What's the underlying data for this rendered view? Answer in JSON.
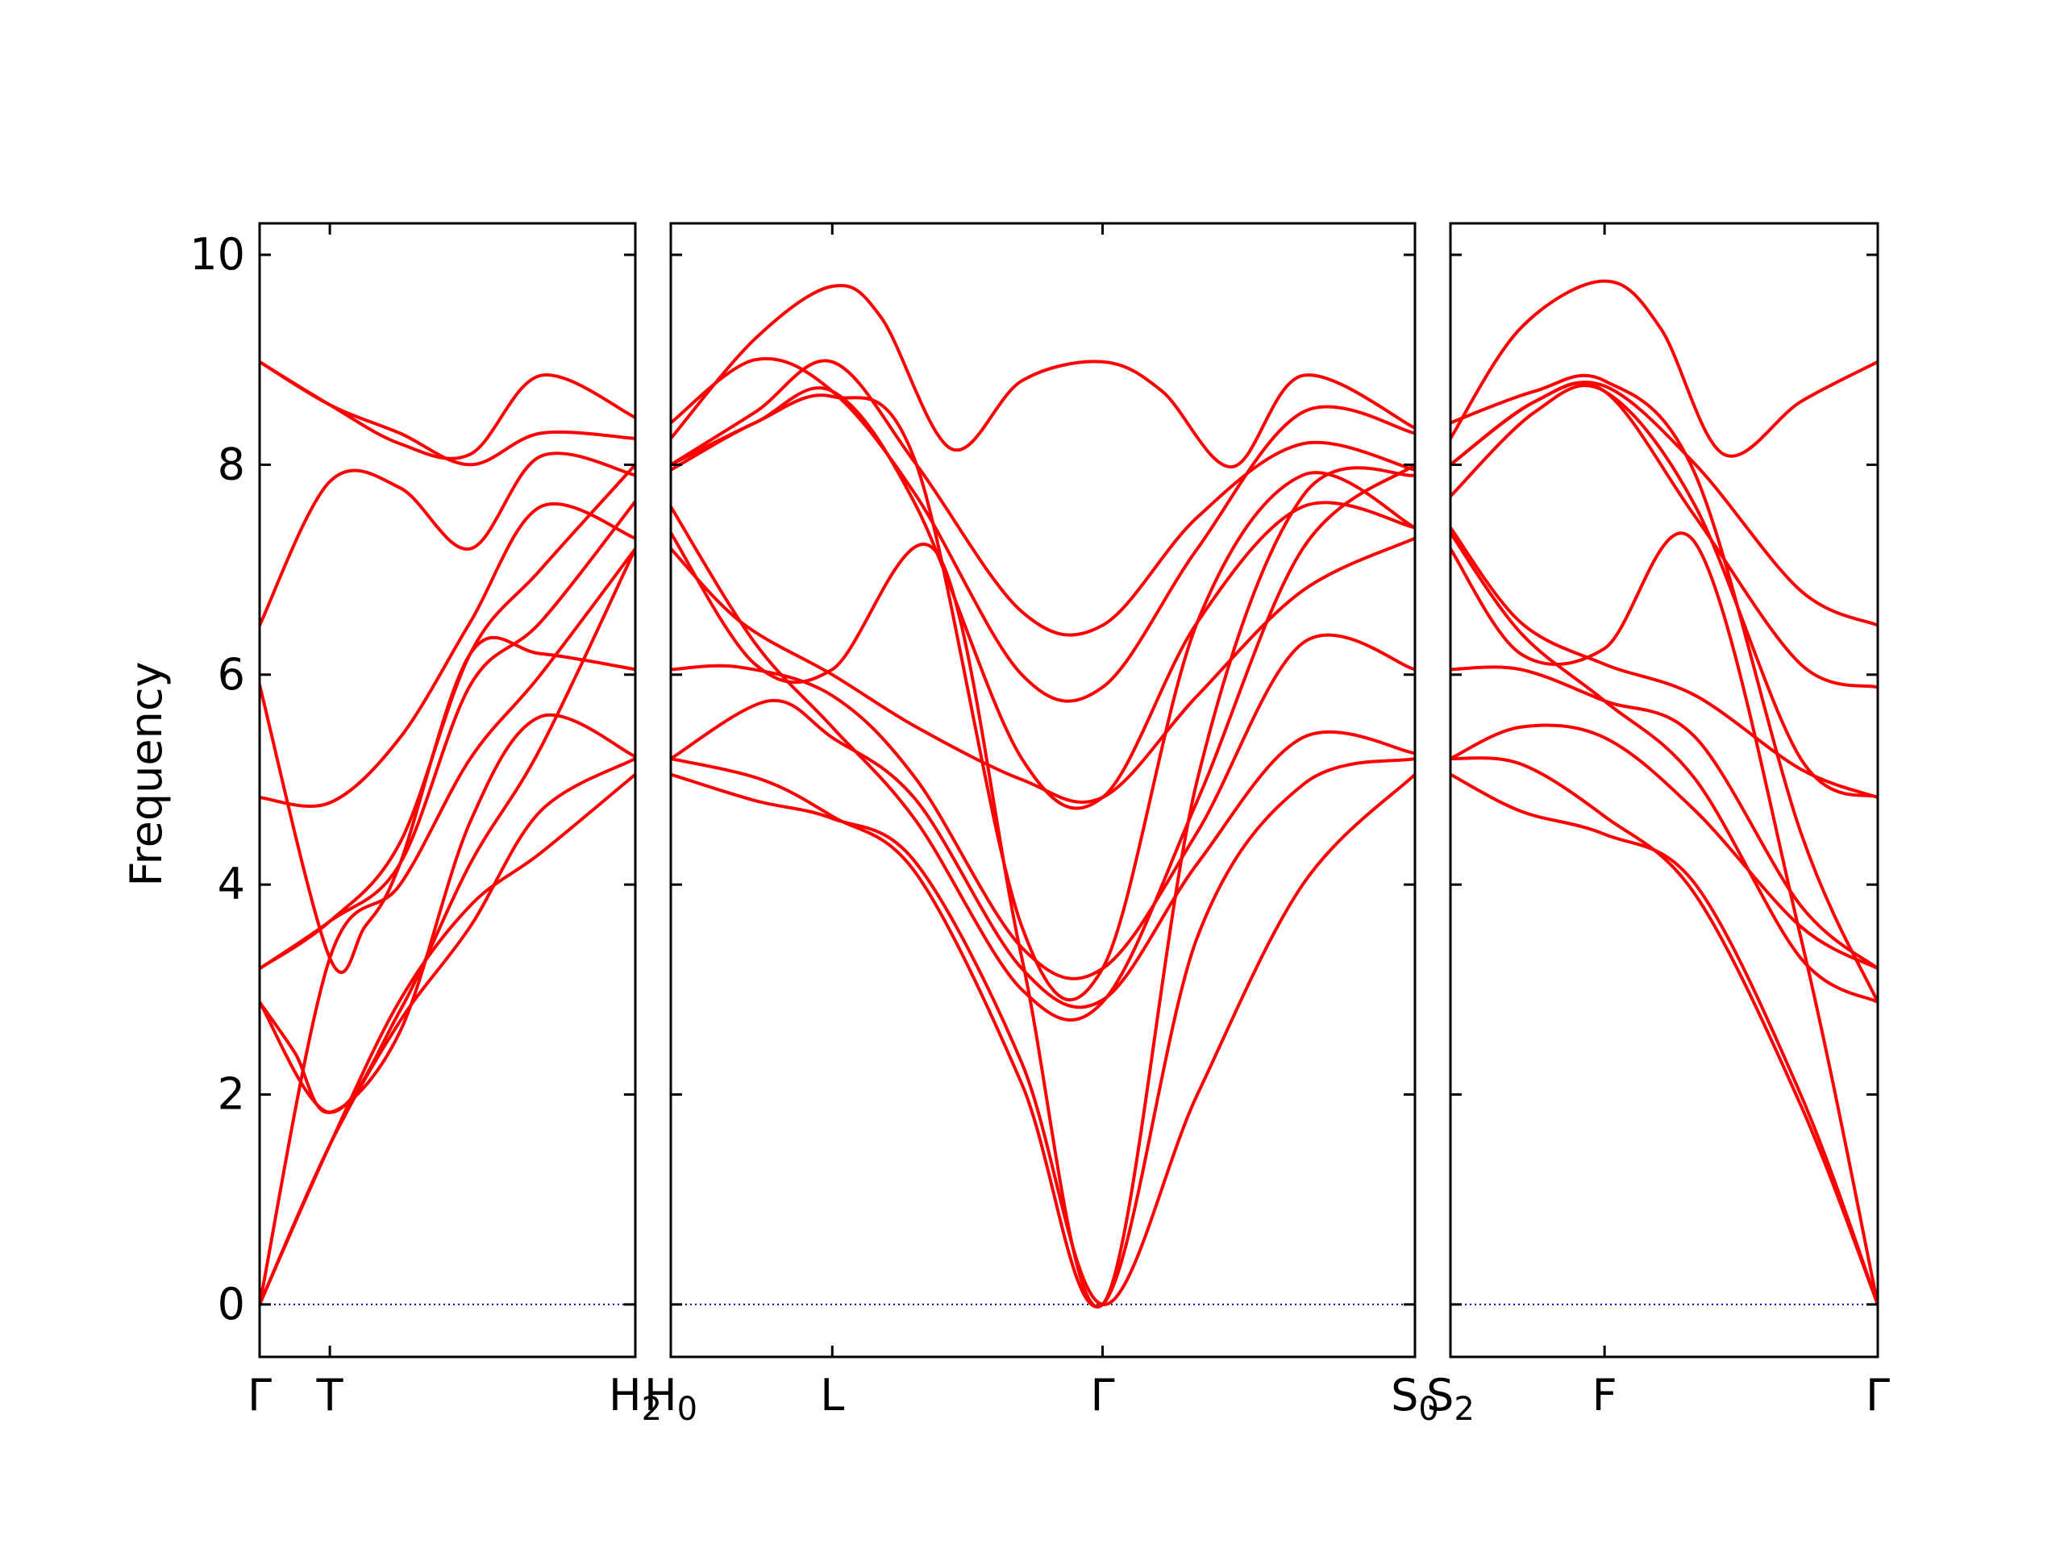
{
  "chart_data": {
    "type": "line",
    "ylabel": "Frequency",
    "ylim": [
      -0.5,
      10.3
    ],
    "grid": false,
    "legend": "none",
    "yticks": [
      0,
      2,
      4,
      6,
      8,
      10
    ],
    "line_color": "#ff0000",
    "zero_line_color": "#0000cc",
    "panels": [
      {
        "xlim": [
          0,
          5.35
        ],
        "ticks": [
          {
            "x": 0,
            "label": "Γ",
            "sub": ""
          },
          {
            "x": 1.0,
            "label": "T",
            "sub": ""
          },
          {
            "x": 5.35,
            "label": "H",
            "sub": "2"
          }
        ],
        "bands": [
          [
            [
              0,
              0
            ],
            [
              1.0,
              1.52
            ],
            [
              2.0,
              2.9
            ],
            [
              3.0,
              3.8
            ],
            [
              4.0,
              4.3
            ],
            [
              5.35,
              5.05
            ]
          ],
          [
            [
              0,
              0
            ],
            [
              1.0,
              3.3
            ],
            [
              2.0,
              4.0
            ],
            [
              3.0,
              5.2
            ],
            [
              4.0,
              6.0
            ],
            [
              5.35,
              7.2
            ]
          ],
          [
            [
              0,
              2.88
            ],
            [
              0.5,
              2.4
            ],
            [
              1.0,
              1.83
            ],
            [
              2.0,
              2.6
            ],
            [
              3.0,
              4.6
            ],
            [
              4.0,
              5.6
            ],
            [
              5.35,
              5.22
            ]
          ],
          [
            [
              0,
              3.2
            ],
            [
              1.0,
              3.65
            ],
            [
              2.0,
              4.2
            ],
            [
              3.0,
              5.9
            ],
            [
              4.0,
              6.5
            ],
            [
              5.35,
              7.65
            ]
          ],
          [
            [
              0,
              4.83
            ],
            [
              1.0,
              4.78
            ],
            [
              2.0,
              5.4
            ],
            [
              3.0,
              6.5
            ],
            [
              4.0,
              7.6
            ],
            [
              5.35,
              7.3
            ]
          ],
          [
            [
              0,
              5.9
            ],
            [
              1.0,
              3.3
            ],
            [
              1.5,
              3.6
            ],
            [
              2.0,
              4.2
            ],
            [
              3.0,
              6.2
            ],
            [
              4.0,
              6.2
            ],
            [
              5.35,
              6.05
            ]
          ],
          [
            [
              0,
              6.47
            ],
            [
              1.0,
              7.84
            ],
            [
              2.0,
              7.78
            ],
            [
              3.0,
              7.2
            ],
            [
              4.0,
              8.08
            ],
            [
              5.35,
              7.9
            ]
          ],
          [
            [
              0,
              8.98
            ],
            [
              1.0,
              8.57
            ],
            [
              2.0,
              8.3
            ],
            [
              3.0,
              8.0
            ],
            [
              4.0,
              8.3
            ],
            [
              5.35,
              8.25
            ]
          ],
          [
            [
              0,
              8.98
            ],
            [
              1.0,
              8.57
            ],
            [
              2.0,
              8.2
            ],
            [
              3.0,
              8.1
            ],
            [
              4.0,
              8.85
            ],
            [
              5.35,
              8.45
            ]
          ],
          [
            [
              0,
              0
            ],
            [
              1.0,
              1.52
            ],
            [
              2.0,
              2.7
            ],
            [
              3.0,
              3.6
            ],
            [
              4.0,
              4.7
            ],
            [
              5.35,
              5.2
            ]
          ],
          [
            [
              0,
              2.88
            ],
            [
              1.0,
              1.83
            ],
            [
              2.0,
              2.8
            ],
            [
              3.0,
              4.2
            ],
            [
              4.0,
              5.3
            ],
            [
              5.35,
              7.2
            ]
          ],
          [
            [
              0,
              3.2
            ],
            [
              1.0,
              3.65
            ],
            [
              2.0,
              4.4
            ],
            [
              3.0,
              6.2
            ],
            [
              4.0,
              7.0
            ],
            [
              5.35,
              8.0
            ]
          ]
        ]
      },
      {
        "xlim": [
          0,
          10.6
        ],
        "ticks": [
          {
            "x": 0,
            "label": "H",
            "sub": "0"
          },
          {
            "x": 2.3,
            "label": "L",
            "sub": ""
          },
          {
            "x": 6.15,
            "label": "Γ",
            "sub": ""
          },
          {
            "x": 10.6,
            "label": "S",
            "sub": "0"
          }
        ],
        "bands": [
          [
            [
              0,
              5.05
            ],
            [
              1.2,
              4.8
            ],
            [
              2.3,
              4.63
            ],
            [
              3.5,
              4.2
            ],
            [
              5.0,
              2.3
            ],
            [
              6.15,
              0
            ],
            [
              7.5,
              2.0
            ],
            [
              9.0,
              4.0
            ],
            [
              10.6,
              5.05
            ]
          ],
          [
            [
              0,
              5.2
            ],
            [
              1.3,
              5.0
            ],
            [
              2.3,
              4.65
            ],
            [
              3.5,
              4.1
            ],
            [
              5.0,
              2.1
            ],
            [
              6.15,
              0
            ],
            [
              7.5,
              3.5
            ],
            [
              9.0,
              4.95
            ],
            [
              10.6,
              5.2
            ]
          ],
          [
            [
              0,
              5.2
            ],
            [
              1.4,
              5.75
            ],
            [
              2.3,
              5.4
            ],
            [
              3.5,
              4.8
            ],
            [
              5.0,
              3.2
            ],
            [
              6.15,
              2.9
            ],
            [
              7.5,
              4.2
            ],
            [
              9.0,
              5.4
            ],
            [
              10.6,
              5.25
            ]
          ],
          [
            [
              0,
              6.05
            ],
            [
              1.0,
              6.07
            ],
            [
              2.3,
              5.8
            ],
            [
              3.5,
              5.0
            ],
            [
              5.0,
              3.4
            ],
            [
              6.15,
              3.2
            ],
            [
              7.5,
              4.5
            ],
            [
              9.0,
              6.3
            ],
            [
              10.6,
              6.05
            ]
          ],
          [
            [
              0,
              7.2
            ],
            [
              1.0,
              6.5
            ],
            [
              2.3,
              6.0
            ],
            [
              3.5,
              5.5
            ],
            [
              5.0,
              5.0
            ],
            [
              6.15,
              4.83
            ],
            [
              7.5,
              5.8
            ],
            [
              9.0,
              6.8
            ],
            [
              10.6,
              7.3
            ]
          ],
          [
            [
              0,
              7.35
            ],
            [
              1.2,
              6.1
            ],
            [
              2.3,
              6.05
            ],
            [
              3.8,
              7.15
            ],
            [
              5.0,
              3.3
            ],
            [
              6.15,
              0
            ],
            [
              7.5,
              5.0
            ],
            [
              9.0,
              7.7
            ],
            [
              10.6,
              7.9
            ]
          ],
          [
            [
              0,
              7.6
            ],
            [
              1.2,
              6.3
            ],
            [
              2.3,
              5.5
            ],
            [
              3.5,
              4.6
            ],
            [
              5.0,
              3.0
            ],
            [
              6.15,
              2.88
            ],
            [
              7.5,
              4.8
            ],
            [
              9.0,
              7.2
            ],
            [
              10.6,
              8.0
            ]
          ],
          [
            [
              0,
              7.95
            ],
            [
              1.2,
              8.4
            ],
            [
              2.3,
              8.65
            ],
            [
              3.5,
              8.0
            ],
            [
              5.0,
              3.6
            ],
            [
              6.15,
              3.2
            ],
            [
              7.5,
              6.5
            ],
            [
              9.0,
              7.9
            ],
            [
              10.6,
              7.4
            ]
          ],
          [
            [
              0,
              8.0
            ],
            [
              1.2,
              8.4
            ],
            [
              2.3,
              8.7
            ],
            [
              3.5,
              7.6
            ],
            [
              5.0,
              5.2
            ],
            [
              6.15,
              4.83
            ],
            [
              7.5,
              6.5
            ],
            [
              9.0,
              7.6
            ],
            [
              10.6,
              7.4
            ]
          ],
          [
            [
              0,
              8.0
            ],
            [
              1.2,
              8.5
            ],
            [
              2.3,
              8.98
            ],
            [
              3.5,
              8.0
            ],
            [
              5.0,
              6.6
            ],
            [
              6.15,
              6.47
            ],
            [
              7.5,
              7.5
            ],
            [
              9.0,
              8.2
            ],
            [
              10.6,
              7.95
            ]
          ],
          [
            [
              0,
              8.25
            ],
            [
              1.2,
              9.2
            ],
            [
              2.3,
              9.7
            ],
            [
              3.0,
              9.4
            ],
            [
              4.0,
              8.15
            ],
            [
              5.0,
              8.8
            ],
            [
              6.15,
              8.98
            ],
            [
              7.0,
              8.7
            ],
            [
              8.0,
              7.98
            ],
            [
              9.0,
              8.85
            ],
            [
              10.6,
              8.35
            ]
          ],
          [
            [
              0,
              8.4
            ],
            [
              1.2,
              9.0
            ],
            [
              2.3,
              8.7
            ],
            [
              3.5,
              7.7
            ],
            [
              5.0,
              6.0
            ],
            [
              6.15,
              5.88
            ],
            [
              7.5,
              7.2
            ],
            [
              9.0,
              8.5
            ],
            [
              10.6,
              8.3
            ]
          ]
        ]
      },
      {
        "xlim": [
          0,
          6.1
        ],
        "ticks": [
          {
            "x": 0,
            "label": "S",
            "sub": "2"
          },
          {
            "x": 2.2,
            "label": "F",
            "sub": ""
          },
          {
            "x": 6.1,
            "label": "Γ",
            "sub": ""
          }
        ],
        "bands": [
          [
            [
              0,
              5.05
            ],
            [
              1.0,
              4.7
            ],
            [
              2.2,
              4.48
            ],
            [
              3.5,
              4.0
            ],
            [
              5.0,
              2.0
            ],
            [
              6.1,
              0
            ]
          ],
          [
            [
              0,
              5.2
            ],
            [
              1.0,
              5.15
            ],
            [
              2.2,
              4.65
            ],
            [
              3.5,
              3.9
            ],
            [
              5.0,
              1.9
            ],
            [
              6.1,
              0
            ]
          ],
          [
            [
              0,
              5.2
            ],
            [
              1.0,
              5.5
            ],
            [
              2.2,
              5.4
            ],
            [
              3.5,
              4.7
            ],
            [
              5.0,
              3.6
            ],
            [
              6.1,
              3.2
            ]
          ],
          [
            [
              0,
              6.05
            ],
            [
              1.0,
              6.05
            ],
            [
              2.2,
              5.75
            ],
            [
              3.5,
              5.4
            ],
            [
              5.0,
              3.8
            ],
            [
              6.1,
              3.2
            ]
          ],
          [
            [
              0,
              7.2
            ],
            [
              1.0,
              6.2
            ],
            [
              2.2,
              6.25
            ],
            [
              3.5,
              7.25
            ],
            [
              5.0,
              3.5
            ],
            [
              6.1,
              0
            ]
          ],
          [
            [
              0,
              7.35
            ],
            [
              1.0,
              6.4
            ],
            [
              2.2,
              5.75
            ],
            [
              3.5,
              5.0
            ],
            [
              5.0,
              3.3
            ],
            [
              6.1,
              2.88
            ]
          ],
          [
            [
              0,
              7.4
            ],
            [
              1.0,
              6.5
            ],
            [
              2.2,
              6.1
            ],
            [
              3.5,
              5.8
            ],
            [
              5.0,
              5.1
            ],
            [
              6.1,
              4.83
            ]
          ],
          [
            [
              0,
              7.7
            ],
            [
              1.2,
              8.5
            ],
            [
              2.2,
              8.7
            ],
            [
              3.5,
              7.6
            ],
            [
              5.0,
              5.2
            ],
            [
              6.1,
              4.83
            ]
          ],
          [
            [
              0,
              8.0
            ],
            [
              1.2,
              8.6
            ],
            [
              2.2,
              8.75
            ],
            [
              3.5,
              8.0
            ],
            [
              5.0,
              6.8
            ],
            [
              6.1,
              6.47
            ]
          ],
          [
            [
              0,
              8.0
            ],
            [
              1.2,
              8.6
            ],
            [
              2.2,
              8.7
            ],
            [
              3.5,
              7.5
            ],
            [
              5.0,
              6.1
            ],
            [
              6.1,
              5.88
            ]
          ],
          [
            [
              0,
              8.25
            ],
            [
              1.0,
              9.3
            ],
            [
              2.2,
              9.75
            ],
            [
              3.0,
              9.3
            ],
            [
              3.9,
              8.1
            ],
            [
              5.0,
              8.6
            ],
            [
              6.1,
              8.98
            ]
          ],
          [
            [
              0,
              8.4
            ],
            [
              1.2,
              8.7
            ],
            [
              2.2,
              8.8
            ],
            [
              3.5,
              7.9
            ],
            [
              5.0,
              4.5
            ],
            [
              6.1,
              2.88
            ]
          ]
        ]
      }
    ]
  }
}
